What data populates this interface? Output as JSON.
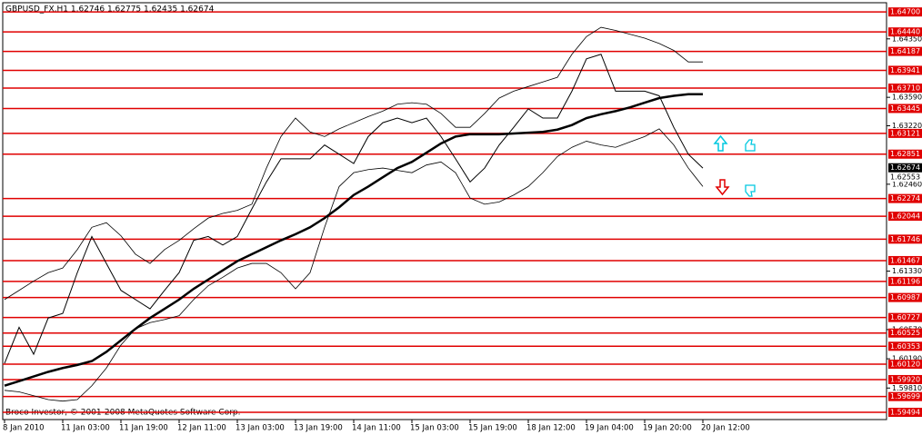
{
  "chart_data": {
    "type": "line",
    "title": "GBPUSD_FX,H1  1.62746 1.62775 1.62435 1.62674",
    "annotation": "Broco Investor, © 2001-2008 MetaQuotes Software Corp.",
    "categories": [
      "8 Jan 2010",
      null,
      null,
      null,
      "11 Jan 03:00",
      null,
      null,
      null,
      "11 Jan 19:00",
      null,
      null,
      null,
      "12 Jan 11:00",
      null,
      null,
      null,
      "13 Jan 03:00",
      null,
      null,
      null,
      "13 Jan 19:00",
      null,
      null,
      null,
      "14 Jan 11:00",
      null,
      null,
      null,
      "15 Jan 03:00",
      null,
      null,
      null,
      "15 Jan 19:00",
      null,
      null,
      null,
      "18 Jan 12:00",
      null,
      null,
      null,
      "19 Jan 04:00",
      null,
      null,
      null,
      "19 Jan 20:00",
      null,
      null,
      null,
      "20 Jan 12:00"
    ],
    "series": [
      {
        "color": "#000000",
        "values": [
          1.6013,
          1.606,
          1.6025,
          1.6072,
          1.6078,
          1.6131,
          1.6178,
          1.6143,
          1.6108,
          1.6096,
          1.6084,
          1.6108,
          1.6131,
          1.6173,
          1.6178,
          1.6167,
          1.6178,
          1.6214,
          1.6249,
          1.6279,
          1.6279,
          1.6279,
          1.6297,
          1.6285,
          1.6273,
          1.6308,
          1.6326,
          1.6332,
          1.6326,
          1.6332,
          1.6308,
          1.6279,
          1.6249,
          1.6267,
          1.6297,
          1.632,
          1.6344,
          1.6332,
          1.6332,
          1.6367,
          1.6409,
          1.6415,
          1.6367,
          1.6367,
          1.6367,
          1.6361,
          1.632,
          1.6285,
          1.6267
        ]
      },
      {
        "color": "#000000",
        "values": [
          1.5984,
          1.599,
          1.5996,
          1.6002,
          1.6007,
          1.6011,
          1.6016,
          1.6028,
          1.6043,
          1.6058,
          1.6072,
          1.6084,
          1.6096,
          1.611,
          1.6122,
          1.6134,
          1.6146,
          1.6155,
          1.6164,
          1.6173,
          1.6181,
          1.619,
          1.6202,
          1.6216,
          1.6232,
          1.6243,
          1.6255,
          1.6267,
          1.6275,
          1.6287,
          1.6299,
          1.6308,
          1.6311,
          1.6311,
          1.6311,
          1.6312,
          1.6313,
          1.6314,
          1.6317,
          1.6323,
          1.6332,
          1.6337,
          1.6341,
          1.6346,
          1.6352,
          1.6358,
          1.6361,
          1.6363,
          1.6363
        ]
      },
      {
        "color": "#000000",
        "values": [
          1.6096,
          1.6108,
          1.612,
          1.6131,
          1.6137,
          1.6161,
          1.619,
          1.6196,
          1.6179,
          1.6155,
          1.6143,
          1.6161,
          1.6173,
          1.6188,
          1.6202,
          1.6208,
          1.6212,
          1.622,
          1.6267,
          1.6308,
          1.6332,
          1.6314,
          1.6308,
          1.6318,
          1.6326,
          1.6334,
          1.6341,
          1.635,
          1.6352,
          1.635,
          1.6338,
          1.632,
          1.632,
          1.6338,
          1.6358,
          1.6367,
          1.6373,
          1.6379,
          1.6385,
          1.6415,
          1.6438,
          1.645,
          1.6446,
          1.6441,
          1.6436,
          1.6429,
          1.642,
          1.6405,
          1.6405
        ]
      },
      {
        "color": "#000000",
        "values": [
          1.5978,
          1.5976,
          1.5971,
          1.5966,
          1.5964,
          1.5966,
          1.5984,
          1.6007,
          1.6037,
          1.6058,
          1.6066,
          1.607,
          1.6075,
          1.6096,
          1.6114,
          1.6125,
          1.6137,
          1.6143,
          1.6143,
          1.6131,
          1.611,
          1.6131,
          1.619,
          1.6243,
          1.6261,
          1.6265,
          1.6267,
          1.6264,
          1.6261,
          1.6271,
          1.6275,
          1.6261,
          1.6228,
          1.622,
          1.6223,
          1.6232,
          1.6243,
          1.6261,
          1.6282,
          1.6294,
          1.6302,
          1.6297,
          1.6294,
          1.6301,
          1.6308,
          1.6318,
          1.6297,
          1.6267,
          1.6243
        ]
      }
    ],
    "ylim": [
      1.594,
      1.6482
    ],
    "yticks": [
      {
        "value": 1.6435,
        "label": "1.64350"
      },
      {
        "value": 1.6359,
        "label": "1.63590"
      },
      {
        "value": 1.6322,
        "label": "1.63220"
      },
      {
        "value": 1.6246,
        "label": "1.62460"
      },
      {
        "value": 1.6133,
        "label": "1.61330"
      },
      {
        "value": 1.6057,
        "label": "1.60570"
      },
      {
        "value": 1.6019,
        "label": "1.60190"
      },
      {
        "value": 1.5981,
        "label": "1.59810"
      }
    ],
    "levels_color": "#e00000",
    "levels": [
      {
        "value": 1.647,
        "label": "1.64700"
      },
      {
        "value": 1.6444,
        "label": "1.64440"
      },
      {
        "value": 1.64187,
        "label": "1.64187"
      },
      {
        "value": 1.63941,
        "label": "1.63941"
      },
      {
        "value": 1.6371,
        "label": "1.63710"
      },
      {
        "value": 1.63445,
        "label": "1.63445"
      },
      {
        "value": 1.63121,
        "label": "1.63121"
      },
      {
        "value": 1.62851,
        "label": "1.62851"
      },
      {
        "value": 1.62274,
        "label": "1.62274"
      },
      {
        "value": 1.62044,
        "label": "1.62044"
      },
      {
        "value": 1.61746,
        "label": "1.61746"
      },
      {
        "value": 1.61467,
        "label": "1.61467"
      },
      {
        "value": 1.61196,
        "label": "1.61196"
      },
      {
        "value": 1.60987,
        "label": "1.60987"
      },
      {
        "value": 1.60727,
        "label": "1.60727"
      },
      {
        "value": 1.60525,
        "label": "1.60525"
      },
      {
        "value": 1.60353,
        "label": "1.60353"
      },
      {
        "value": 1.6012,
        "label": "1.60120"
      },
      {
        "value": 1.5992,
        "label": "1.59920"
      },
      {
        "value": 1.59699,
        "label": "1.59699"
      },
      {
        "value": 1.59494,
        "label": "1.59494"
      }
    ],
    "price_markers": [
      {
        "value": 1.62674,
        "label": "1.62674"
      },
      {
        "value": 1.62553,
        "label": "1.62553"
      }
    ]
  }
}
